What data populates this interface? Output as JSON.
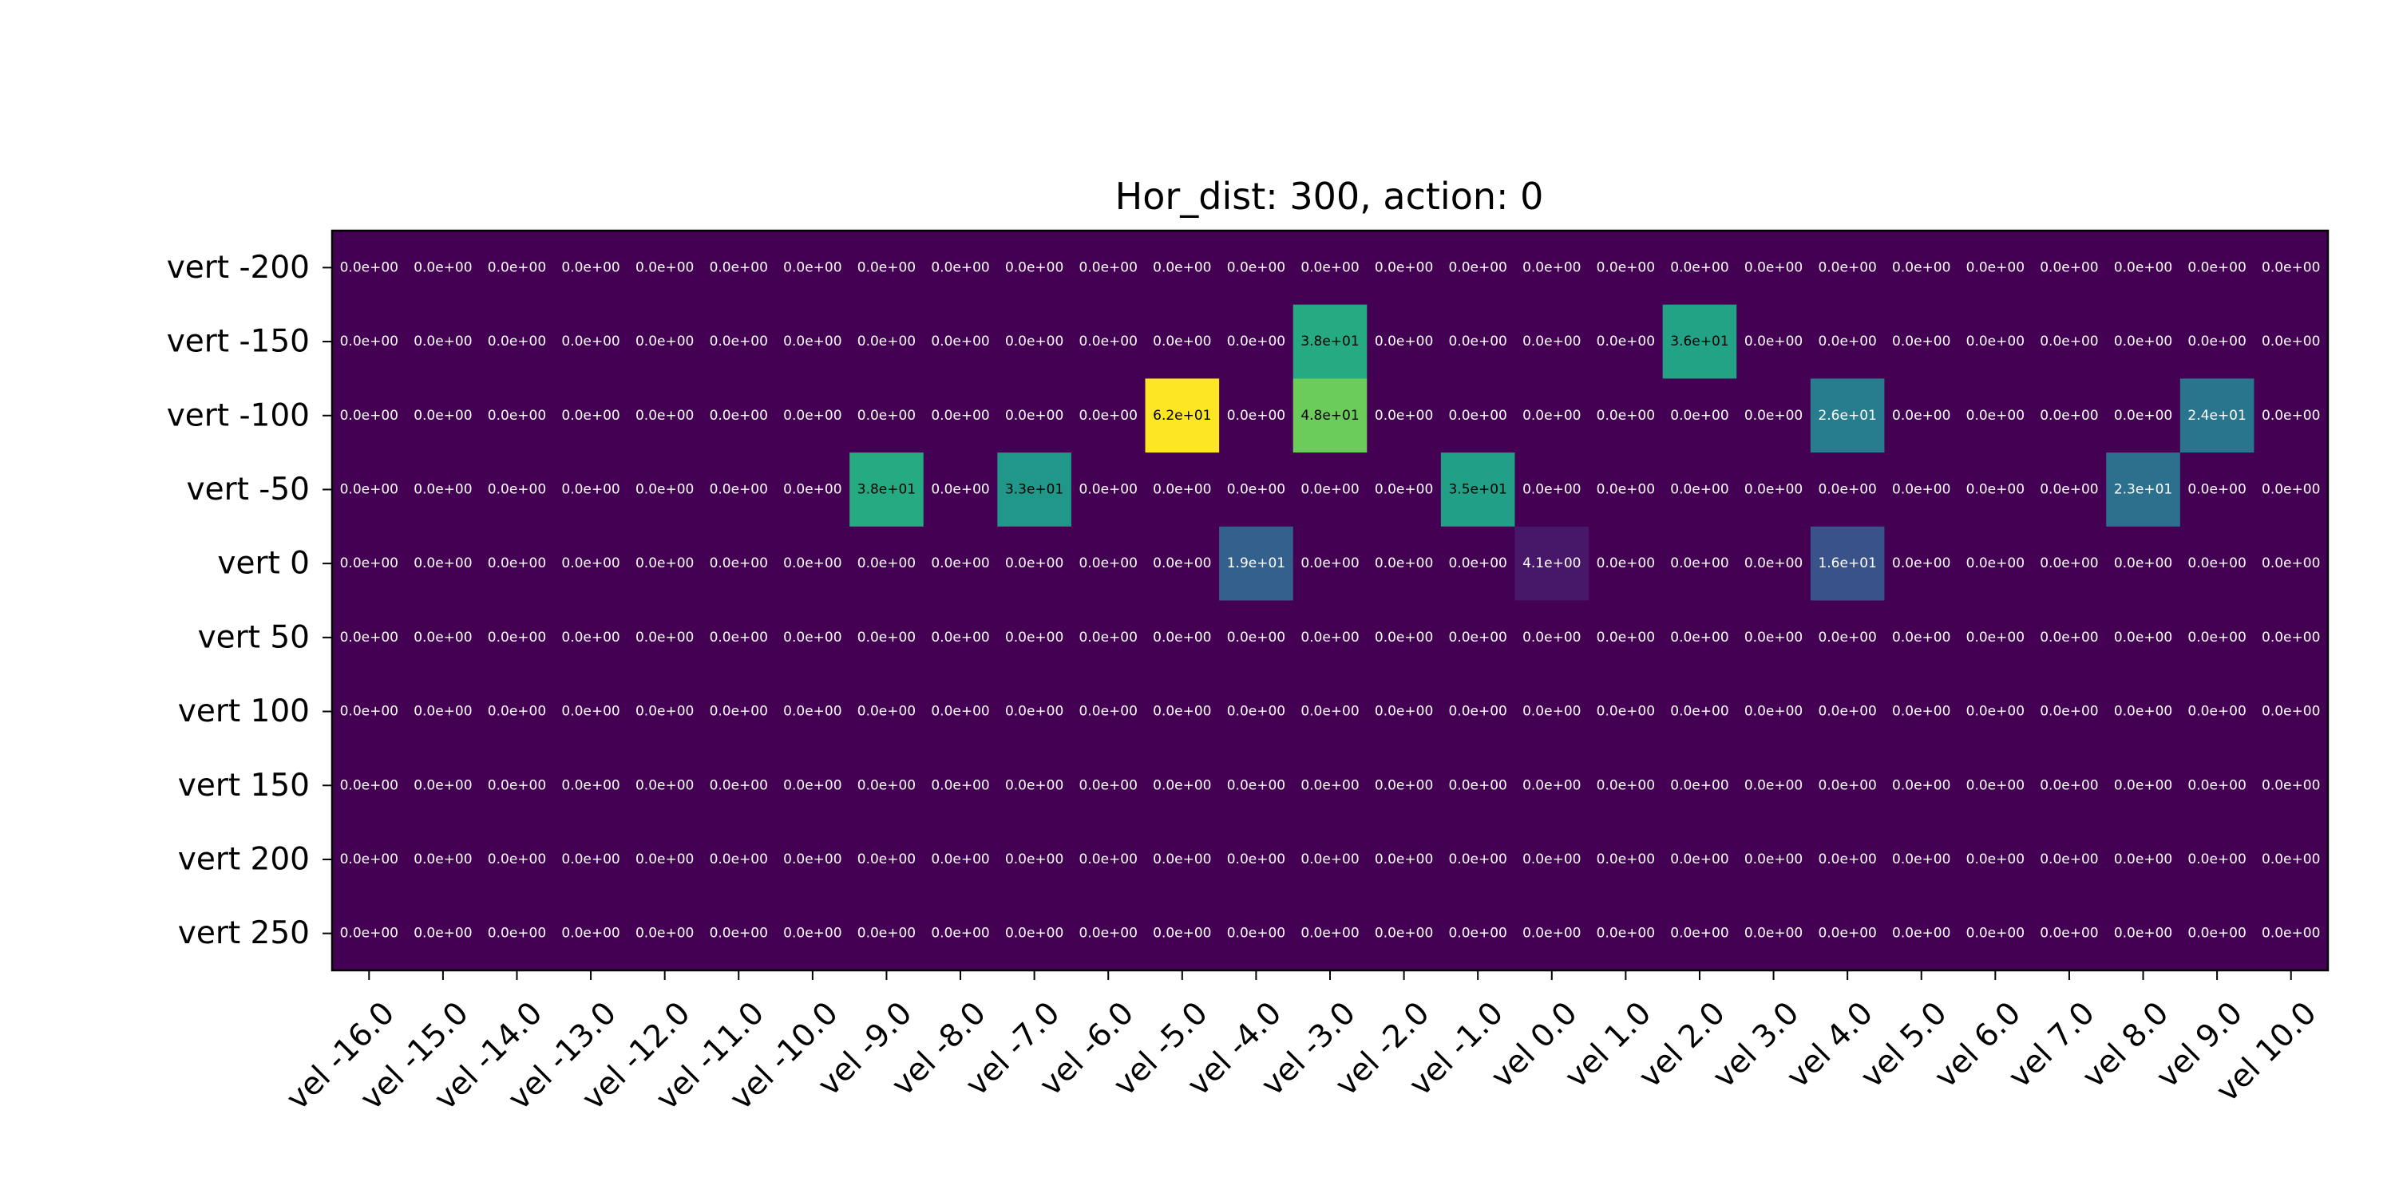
{
  "chart_data": {
    "type": "heatmap",
    "title": "Hor_dist: 300, action: 0",
    "xlabel": "",
    "ylabel": "",
    "x_categories": [
      "vel -16.0",
      "vel -15.0",
      "vel -14.0",
      "vel -13.0",
      "vel -12.0",
      "vel -11.0",
      "vel -10.0",
      "vel -9.0",
      "vel -8.0",
      "vel -7.0",
      "vel -6.0",
      "vel -5.0",
      "vel -4.0",
      "vel -3.0",
      "vel -2.0",
      "vel -1.0",
      "vel 0.0",
      "vel 1.0",
      "vel 2.0",
      "vel 3.0",
      "vel 4.0",
      "vel 5.0",
      "vel 6.0",
      "vel 7.0",
      "vel 8.0",
      "vel 9.0",
      "vel 10.0"
    ],
    "y_categories": [
      "vert -200",
      "vert -150",
      "vert -100",
      "vert -50",
      "vert 0",
      "vert 50",
      "vert 100",
      "vert 150",
      "vert 200",
      "vert 250"
    ],
    "colormap": "viridis",
    "vmin": 0,
    "vmax": 62,
    "label_format": "scientific-1",
    "values": [
      [
        0,
        0,
        0,
        0,
        0,
        0,
        0,
        0,
        0,
        0,
        0,
        0,
        0,
        0,
        0,
        0,
        0,
        0,
        0,
        0,
        0,
        0,
        0,
        0,
        0,
        0,
        0
      ],
      [
        0,
        0,
        0,
        0,
        0,
        0,
        0,
        0,
        0,
        0,
        0,
        0,
        0,
        38,
        0,
        0,
        0,
        0,
        36,
        0,
        0,
        0,
        0,
        0,
        0,
        0,
        0
      ],
      [
        0,
        0,
        0,
        0,
        0,
        0,
        0,
        0,
        0,
        0,
        0,
        62,
        0,
        48,
        0,
        0,
        0,
        0,
        0,
        0,
        26,
        0,
        0,
        0,
        0,
        24,
        0
      ],
      [
        0,
        0,
        0,
        0,
        0,
        0,
        0,
        38,
        0,
        33,
        0,
        0,
        0,
        0,
        0,
        35,
        0,
        0,
        0,
        0,
        0,
        0,
        0,
        0,
        23,
        0,
        0
      ],
      [
        0,
        0,
        0,
        0,
        0,
        0,
        0,
        0,
        0,
        0,
        0,
        0,
        19,
        0,
        0,
        0,
        4.1,
        0,
        0,
        0,
        16,
        0,
        0,
        0,
        0,
        0,
        0
      ],
      [
        0,
        0,
        0,
        0,
        0,
        0,
        0,
        0,
        0,
        0,
        0,
        0,
        0,
        0,
        0,
        0,
        0,
        0,
        0,
        0,
        0,
        0,
        0,
        0,
        0,
        0,
        0
      ],
      [
        0,
        0,
        0,
        0,
        0,
        0,
        0,
        0,
        0,
        0,
        0,
        0,
        0,
        0,
        0,
        0,
        0,
        0,
        0,
        0,
        0,
        0,
        0,
        0,
        0,
        0,
        0
      ],
      [
        0,
        0,
        0,
        0,
        0,
        0,
        0,
        0,
        0,
        0,
        0,
        0,
        0,
        0,
        0,
        0,
        0,
        0,
        0,
        0,
        0,
        0,
        0,
        0,
        0,
        0,
        0
      ],
      [
        0,
        0,
        0,
        0,
        0,
        0,
        0,
        0,
        0,
        0,
        0,
        0,
        0,
        0,
        0,
        0,
        0,
        0,
        0,
        0,
        0,
        0,
        0,
        0,
        0,
        0,
        0
      ],
      [
        0,
        0,
        0,
        0,
        0,
        0,
        0,
        0,
        0,
        0,
        0,
        0,
        0,
        0,
        0,
        0,
        0,
        0,
        0,
        0,
        0,
        0,
        0,
        0,
        0,
        0,
        0
      ]
    ],
    "grid": false,
    "legend": "none"
  }
}
